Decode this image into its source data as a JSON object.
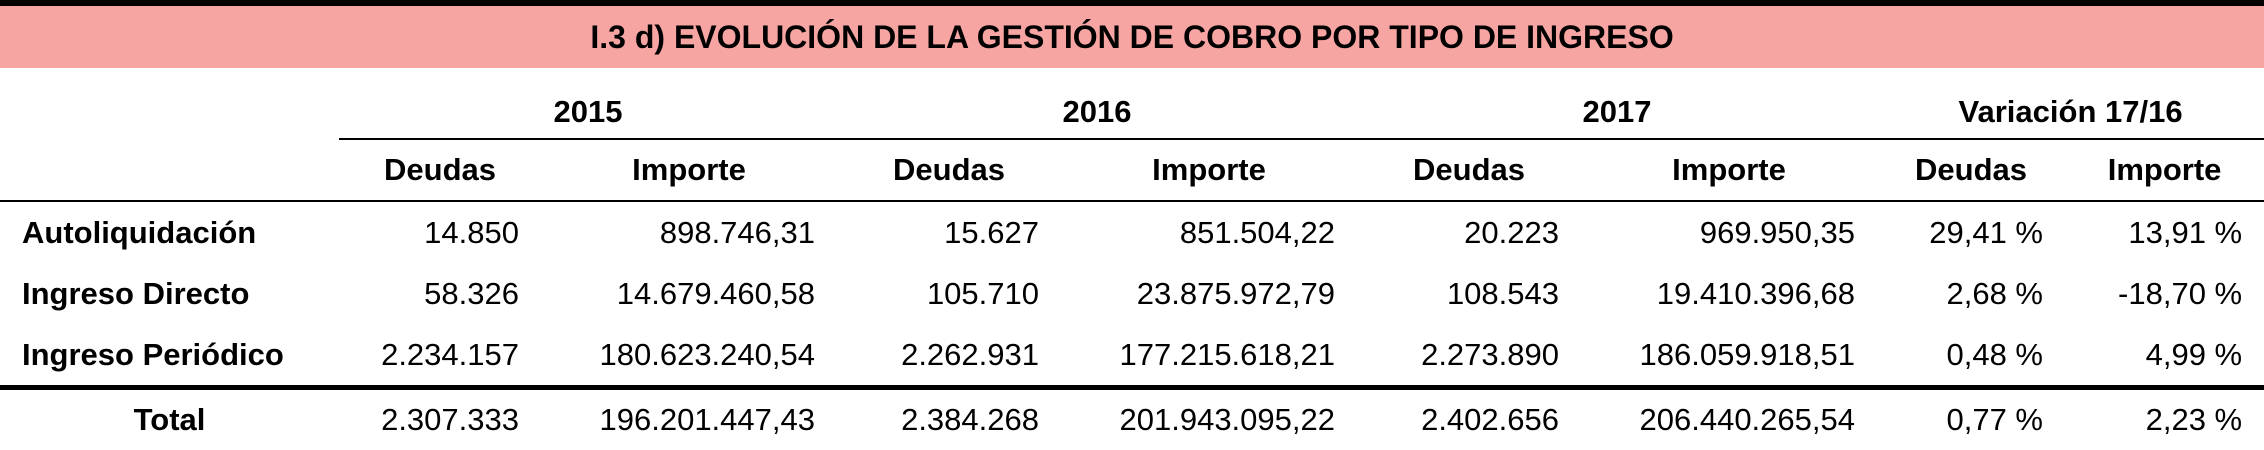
{
  "title": "I.3 d) EVOLUCIÓN DE LA GESTIÓN DE COBRO POR TIPO DE INGRESO",
  "header": {
    "groups": [
      "2015",
      "2016",
      "2017",
      "Variación 17/16"
    ],
    "subcolumns": [
      "Deudas",
      "Importe",
      "Deudas",
      "Importe",
      "Deudas",
      "Importe",
      "Deudas",
      "Importe"
    ]
  },
  "rows": [
    {
      "label": "Autoliquidación",
      "cells": [
        "14.850",
        "898.746,31",
        "15.627",
        "851.504,22",
        "20.223",
        "969.950,35",
        "29,41 %",
        "13,91 %"
      ]
    },
    {
      "label": "Ingreso Directo",
      "cells": [
        "58.326",
        "14.679.460,58",
        "105.710",
        "23.875.972,79",
        "108.543",
        "19.410.396,68",
        "2,68 %",
        "-18,70 %"
      ]
    },
    {
      "label": "Ingreso Periódico",
      "cells": [
        "2.234.157",
        "180.623.240,54",
        "2.262.931",
        "177.215.618,21",
        "2.273.890",
        "186.059.918,51",
        "0,48 %",
        "4,99 %"
      ]
    }
  ],
  "total": {
    "label": "Total",
    "cells": [
      "2.307.333",
      "196.201.447,43",
      "2.384.268",
      "201.943.095,22",
      "2.402.656",
      "206.440.265,54",
      "0,77 %",
      "2,23 %"
    ]
  }
}
